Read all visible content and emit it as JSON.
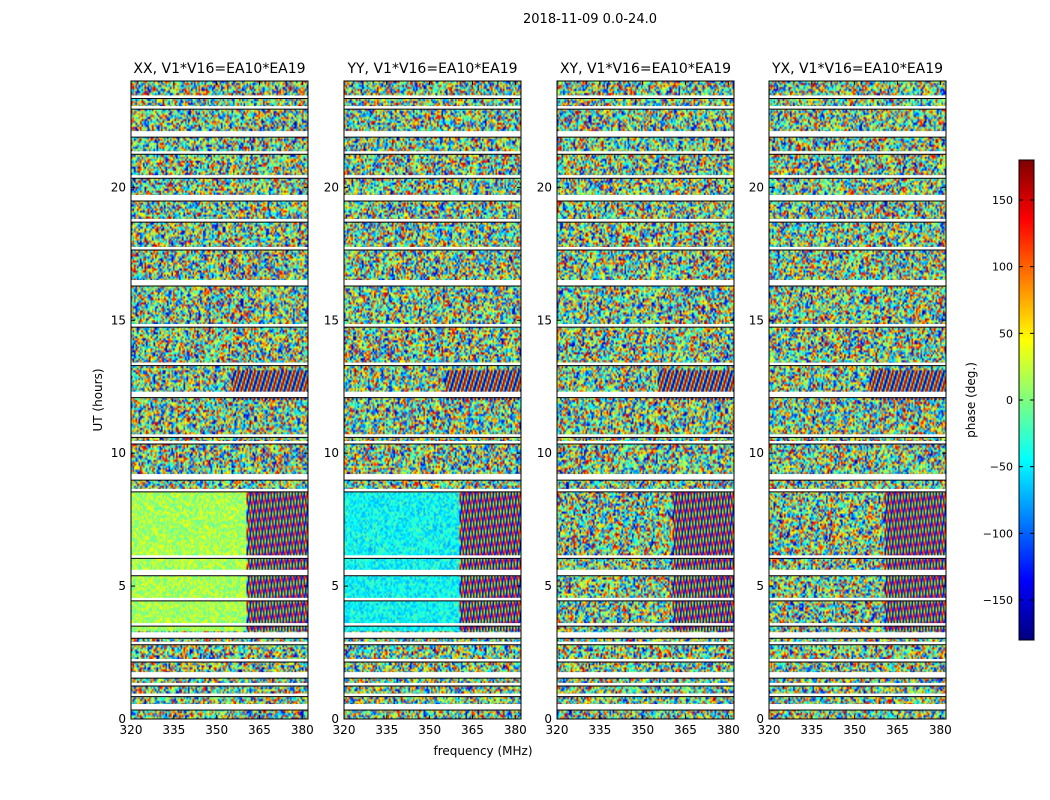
{
  "chart_data": {
    "type": "heatmap",
    "title": "2018-11-09 0.0-24.0",
    "xlabel": "frequency (MHz)",
    "ylabel": "UT (hours)",
    "xlim": [
      320,
      382
    ],
    "ylim": [
      0,
      24
    ],
    "xticks": [
      320,
      335,
      350,
      365,
      380
    ],
    "yticks": [
      0,
      5,
      10,
      15,
      20
    ],
    "panels": [
      {
        "title": "XX, V1*V16=EA10*EA19"
      },
      {
        "title": "YY, V1*V16=EA10*EA19"
      },
      {
        "title": "XY, V1*V16=EA10*EA19"
      },
      {
        "title": "YX, V1*V16=EA10*EA19"
      }
    ],
    "colorbar": {
      "label": "phase (deg.)",
      "range": [
        -180,
        180
      ],
      "ticks": [
        -150,
        -100,
        -50,
        0,
        50,
        100,
        150
      ],
      "colormap": "jet",
      "colors": [
        "#00007f",
        "#0000ff",
        "#007fff",
        "#00ffff",
        "#7fff7f",
        "#ffff00",
        "#ff7f00",
        "#ff0000",
        "#7f0000"
      ]
    },
    "flagged_gaps_hours": [
      0.45,
      0.9,
      1.3,
      1.65,
      2.2,
      2.85,
      3.15,
      3.55,
      4.5,
      5.5,
      6.1,
      8.6,
      9.1,
      10.4,
      10.65,
      12.2,
      13.35,
      14.8,
      16.4,
      17.7,
      18.75,
      19.6,
      20.4,
      21.3,
      22.0,
      23.0,
      23.4
    ]
  }
}
